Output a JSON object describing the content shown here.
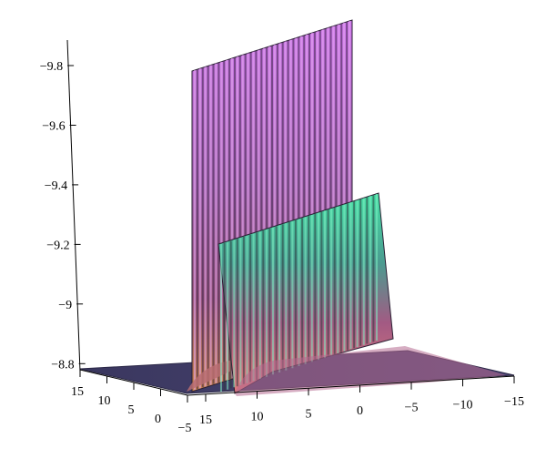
{
  "chart_data": {
    "type": "surface3d",
    "title": "",
    "xlabel": "",
    "ylabel": "",
    "zlabel": "",
    "x_axis": {
      "range": [
        -15,
        15
      ],
      "ticks": [
        15,
        10,
        5,
        0,
        -5,
        -10,
        -15
      ],
      "tick_labels": [
        "15",
        "10",
        "5",
        "0",
        "−5",
        "−10",
        "−15"
      ]
    },
    "y_axis": {
      "range": [
        -5,
        15
      ],
      "ticks": [
        15,
        10,
        5,
        0,
        -5
      ],
      "tick_labels": [
        "15",
        "10",
        "5",
        "0",
        "−5"
      ]
    },
    "z_axis": {
      "range": [
        -8.7,
        -9.8
      ],
      "ticks": [
        -9.8,
        -9.6,
        -9.4,
        -9.2,
        -9.0,
        -8.8
      ],
      "tick_labels": [
        "−9.8",
        "−9.6",
        "−9.4",
        "−9.2",
        "−9",
        "−8.8"
      ]
    },
    "surfaces": [
      {
        "kind": "tall-ridge",
        "peak_value": -9.8,
        "base_value": -8.7,
        "top_color": "#c86be0",
        "base_color": "#7a3a78"
      },
      {
        "kind": "front-ridge",
        "peak_value": -9.2,
        "base_value": -8.7,
        "top_color": "#3fd3a0",
        "base_color": "#d36a8a"
      }
    ],
    "floor": {
      "value": -8.7,
      "color": "#3e3a63"
    },
    "grid": false,
    "legend": "none"
  }
}
